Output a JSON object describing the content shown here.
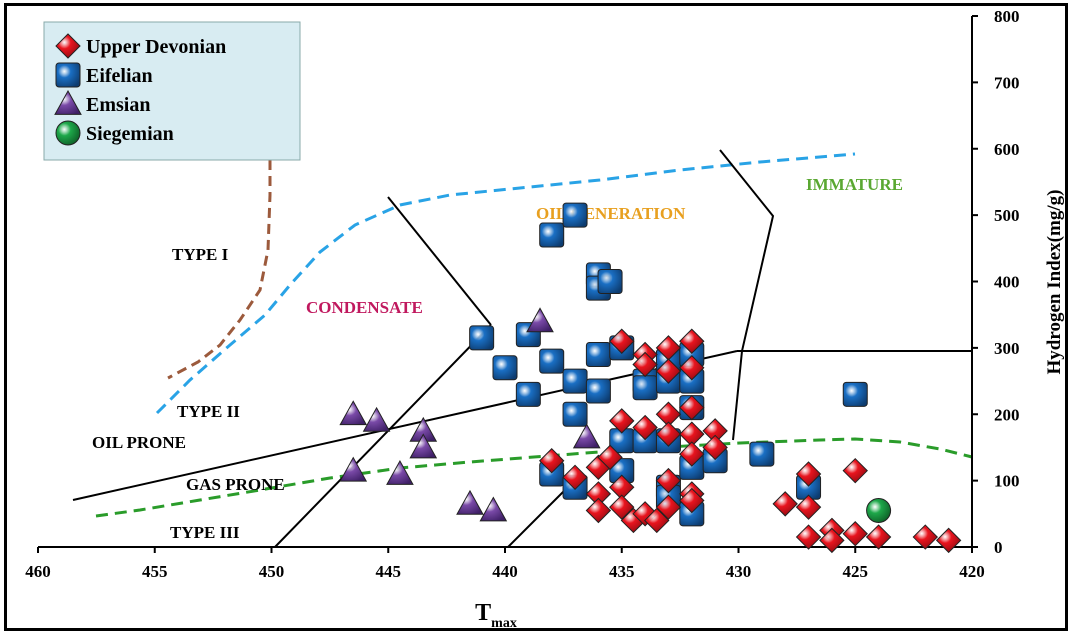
{
  "chart_data": {
    "type": "scatter",
    "xlabel": "T",
    "xlabel_sub": "max",
    "ylabel": "Hydrogen Index(mg/g)",
    "xlim": [
      460,
      420
    ],
    "ylim": [
      0,
      800
    ],
    "x_ticks": [
      "460",
      "455",
      "450",
      "445",
      "440",
      "435",
      "430",
      "425",
      "420"
    ],
    "y_ticks": [
      "0",
      "100",
      "200",
      "300",
      "400",
      "500",
      "600",
      "700",
      "800"
    ],
    "y_axis_position": "right",
    "grid": false,
    "legend_position": "top-left",
    "series": [
      {
        "name": "Upper Devonian",
        "marker": "diamond",
        "color": "#e8141e",
        "points": [
          [
            438,
            130
          ],
          [
            437,
            105
          ],
          [
            436,
            80
          ],
          [
            436,
            120
          ],
          [
            436,
            55
          ],
          [
            435.5,
            135
          ],
          [
            435,
            190
          ],
          [
            435,
            310
          ],
          [
            435,
            90
          ],
          [
            435,
            60
          ],
          [
            434.5,
            40
          ],
          [
            434,
            180
          ],
          [
            434,
            290
          ],
          [
            434,
            275
          ],
          [
            434,
            50
          ],
          [
            433.5,
            40
          ],
          [
            433,
            300
          ],
          [
            433,
            265
          ],
          [
            433,
            200
          ],
          [
            433,
            170
          ],
          [
            433,
            100
          ],
          [
            433,
            60
          ],
          [
            432,
            310
          ],
          [
            432,
            270
          ],
          [
            432,
            210
          ],
          [
            432,
            170
          ],
          [
            432,
            140
          ],
          [
            432,
            80
          ],
          [
            432,
            70
          ],
          [
            431,
            175
          ],
          [
            431,
            150
          ],
          [
            428,
            65
          ],
          [
            427,
            110
          ],
          [
            427,
            60
          ],
          [
            427,
            15
          ],
          [
            426,
            25
          ],
          [
            426,
            10
          ],
          [
            425,
            115
          ],
          [
            425,
            20
          ],
          [
            424,
            15
          ],
          [
            422,
            15
          ],
          [
            421,
            10
          ]
        ]
      },
      {
        "name": "Eifelian",
        "marker": "square",
        "color": "#1a6fc4",
        "points": [
          [
            441,
            315
          ],
          [
            440,
            270
          ],
          [
            439,
            320
          ],
          [
            439,
            230
          ],
          [
            438,
            470
          ],
          [
            438,
            280
          ],
          [
            438,
            110
          ],
          [
            437,
            500
          ],
          [
            437,
            250
          ],
          [
            437,
            200
          ],
          [
            437,
            90
          ],
          [
            436,
            410
          ],
          [
            436,
            390
          ],
          [
            436,
            290
          ],
          [
            436,
            235
          ],
          [
            435.5,
            400
          ],
          [
            435,
            300
          ],
          [
            435,
            160
          ],
          [
            435,
            115
          ],
          [
            434,
            250
          ],
          [
            434,
            240
          ],
          [
            434,
            160
          ],
          [
            433,
            280
          ],
          [
            433,
            250
          ],
          [
            433,
            160
          ],
          [
            433,
            90
          ],
          [
            433,
            75
          ],
          [
            432,
            290
          ],
          [
            432,
            250
          ],
          [
            432,
            210
          ],
          [
            432,
            120
          ],
          [
            432,
            50
          ],
          [
            431,
            130
          ],
          [
            429,
            140
          ],
          [
            427,
            90
          ],
          [
            425,
            230
          ]
        ]
      },
      {
        "name": "Emsian",
        "marker": "triangle",
        "color": "#7a4aa8",
        "points": [
          [
            438.5,
            340
          ],
          [
            446.5,
            200
          ],
          [
            445.5,
            190
          ],
          [
            443.5,
            175
          ],
          [
            443.5,
            150
          ],
          [
            446.5,
            115
          ],
          [
            444.5,
            110
          ],
          [
            441.5,
            65
          ],
          [
            440.5,
            55
          ],
          [
            436.5,
            165
          ]
        ]
      },
      {
        "name": "Siegemian",
        "marker": "circle",
        "color": "#1ea84a",
        "points": [
          [
            424,
            55
          ]
        ]
      }
    ],
    "annotations": [
      {
        "text": "TYPE I",
        "color": "#000000"
      },
      {
        "text": "TYPE II",
        "color": "#000000"
      },
      {
        "text": "OIL PRONE",
        "color": "#000000"
      },
      {
        "text": "GAS PRONE",
        "color": "#000000"
      },
      {
        "text": "TYPE III",
        "color": "#000000"
      },
      {
        "text": "CONDENSATE",
        "color": "#c0185e"
      },
      {
        "text": "OIL GENERATION",
        "color": "#e8a020"
      },
      {
        "text": "IMMATURE",
        "color": "#5aa832"
      }
    ]
  }
}
